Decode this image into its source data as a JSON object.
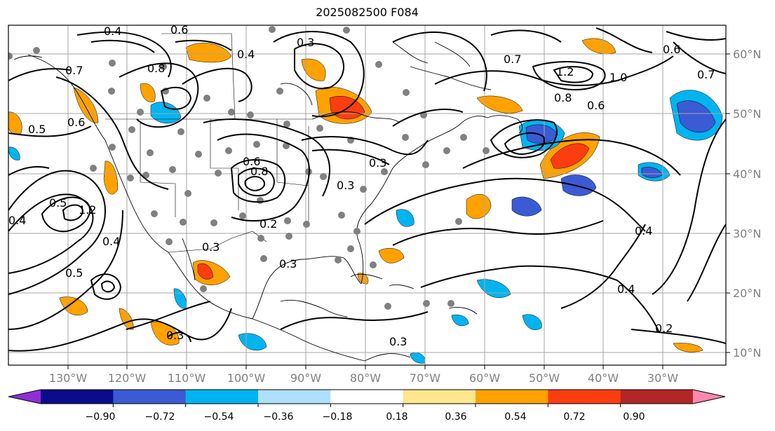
{
  "title": "2025082500 F084",
  "lon_labels": [
    "130°W",
    "120°W",
    "110°W",
    "100°W",
    "90°W",
    "80°W",
    "70°W",
    "60°W",
    "50°W",
    "40°W",
    "30°W"
  ],
  "lat_labels": [
    "60°N",
    "50°N",
    "40°N",
    "30°N",
    "20°N",
    "10°N"
  ],
  "colorbar": {
    "colors": [
      "#8e2fd6",
      "#0b0b8c",
      "#3a5bd4",
      "#00b4f0",
      "#aee0fb",
      "#ffffff",
      "#fde68c",
      "#ffa200",
      "#fb3d10",
      "#b22626",
      "#ff88b0"
    ],
    "ticks": [
      "−0.90",
      "−0.72",
      "−0.54",
      "−0.36",
      "−0.18",
      "0.18",
      "0.36",
      "0.54",
      "0.72",
      "0.90"
    ]
  },
  "contour_labels": [
    "0.4",
    "0.6",
    "0.4",
    "0.3",
    "0.7",
    "0.8",
    "0.7",
    "0.6",
    "1.2",
    "0.6",
    "1.0",
    "0.8",
    "0.7",
    "0.5",
    "0.6",
    "0.5",
    "1.2",
    "0.4",
    "0.6",
    "0.8",
    "0.3",
    "0.3",
    "0.2",
    "0.4",
    "0.5",
    "0.3",
    "0.3",
    "0.3",
    "0.4",
    "0.4",
    "0.2",
    "0.3"
  ]
}
